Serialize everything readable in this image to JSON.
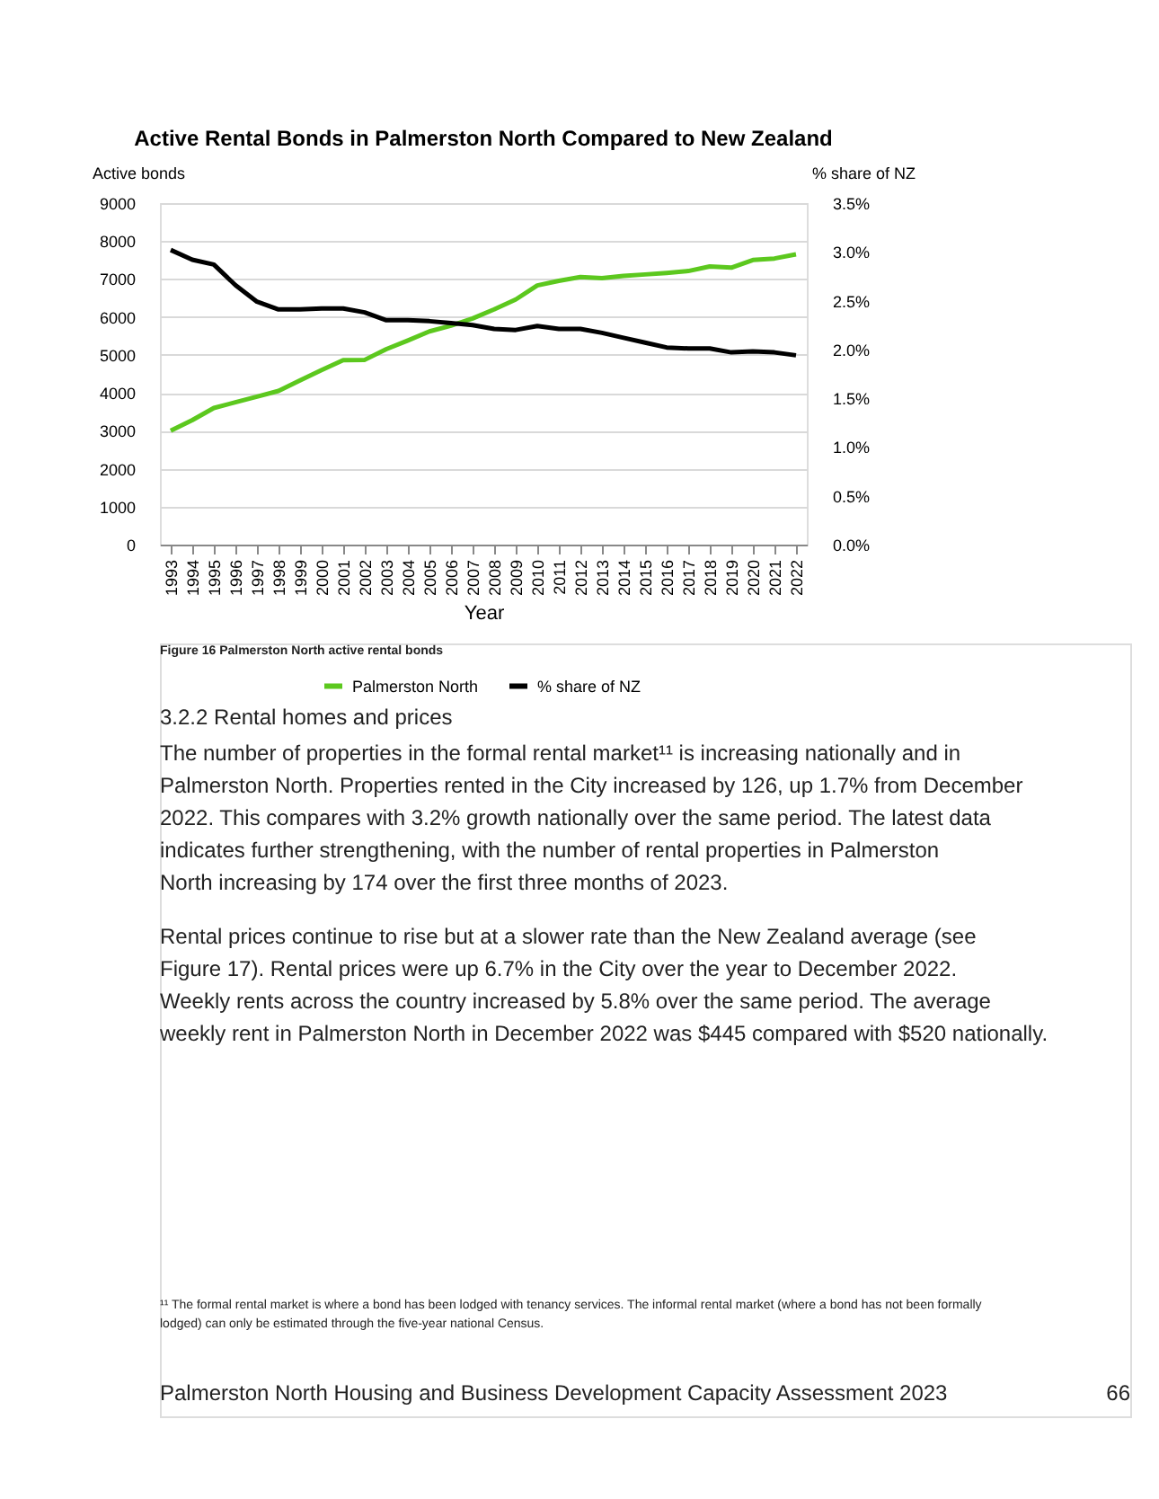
{
  "chart_data": {
    "type": "line",
    "title": "Active Rental Bonds in Palmerston North Compared to New Zealand",
    "xlabel": "Year",
    "ylabel": "Active bonds",
    "y2label": "% share of NZ",
    "categories": [
      "1993",
      "1994",
      "1995",
      "1996",
      "1997",
      "1998",
      "1999",
      "2000",
      "2001",
      "2002",
      "2003",
      "2004",
      "2005",
      "2006",
      "2007",
      "2008",
      "2009",
      "2010",
      "2011",
      "2012",
      "2013",
      "2014",
      "2015",
      "2016",
      "2017",
      "2018",
      "2019",
      "2020",
      "2021",
      "2022"
    ],
    "series": [
      {
        "name": "Palmerston North",
        "color": "#5cc81e",
        "values": [
          3000,
          3280,
          3600,
          3750,
          3900,
          4050,
          4330,
          4600,
          4860,
          4870,
          5150,
          5380,
          5620,
          5770,
          5960,
          6200,
          6460,
          6830,
          6950,
          7050,
          7020,
          7080,
          7120,
          7160,
          7210,
          7330,
          7300,
          7500,
          7540,
          7650
        ]
      },
      {
        "name": "% share of NZ",
        "color": "#000000",
        "axis": "y2",
        "values": [
          3.02,
          2.92,
          2.87,
          2.66,
          2.49,
          2.41,
          2.41,
          2.42,
          2.42,
          2.38,
          2.3,
          2.3,
          2.29,
          2.27,
          2.25,
          2.21,
          2.2,
          2.24,
          2.21,
          2.21,
          2.17,
          2.12,
          2.07,
          2.02,
          2.01,
          2.01,
          1.97,
          1.98,
          1.97,
          1.94
        ]
      }
    ],
    "ylim": [
      0,
      9000
    ],
    "yticks": [
      0,
      1000,
      2000,
      3000,
      4000,
      5000,
      6000,
      7000,
      8000,
      9000
    ],
    "y2lim": [
      0,
      3.5
    ],
    "y2ticks": [
      {
        "value": 0,
        "label": "0.0%"
      },
      {
        "value": 0.5,
        "label": "0.5%"
      },
      {
        "value": 1,
        "label": "1.0%"
      },
      {
        "value": 1.5,
        "label": "1.5%"
      },
      {
        "value": 2,
        "label": "2.0%"
      },
      {
        "value": 2.5,
        "label": "2.5%"
      },
      {
        "value": 3,
        "label": "3.0%"
      },
      {
        "value": 3.5,
        "label": "3.5%"
      }
    ],
    "grid": "y",
    "legend": "bottom",
    "line_style": "solid",
    "annotations": [
      "Figure 16 Palmerston North active rental bonds",
      "3.2.2    Rental homes and prices",
      "The number of properties in the formal rental market¹¹ is increasing nationally and in Palmerston North.  Properties rented in the City increased by 126, up 1.7% from December 2022.  This compares with 3.2% growth nationally over the same period.  The latest data indicates further strengthening, with the number of rental properties in Palmerston North increasing by 174 over the first three months of 2023.",
      "Rental prices continue to rise but at a slower rate than the New Zealand average (see Figure 17). Rental prices were up 6.7% in the City over the year to December 2022. Weekly rents across the country increased by 5.8% over the same period.  The average weekly rent in Palmerston North in December 2022 was $445 compared with $520 nationally.",
      "¹¹ The formal rental market is where a bond has been lodged with tenancy services.  The informal rental market (where a bond has not been formally lodged) can only be estimated through the five-year national Census.",
      "Palmerston North Housing and Business Development Capacity Assessment 2023",
      "66"
    ]
  }
}
